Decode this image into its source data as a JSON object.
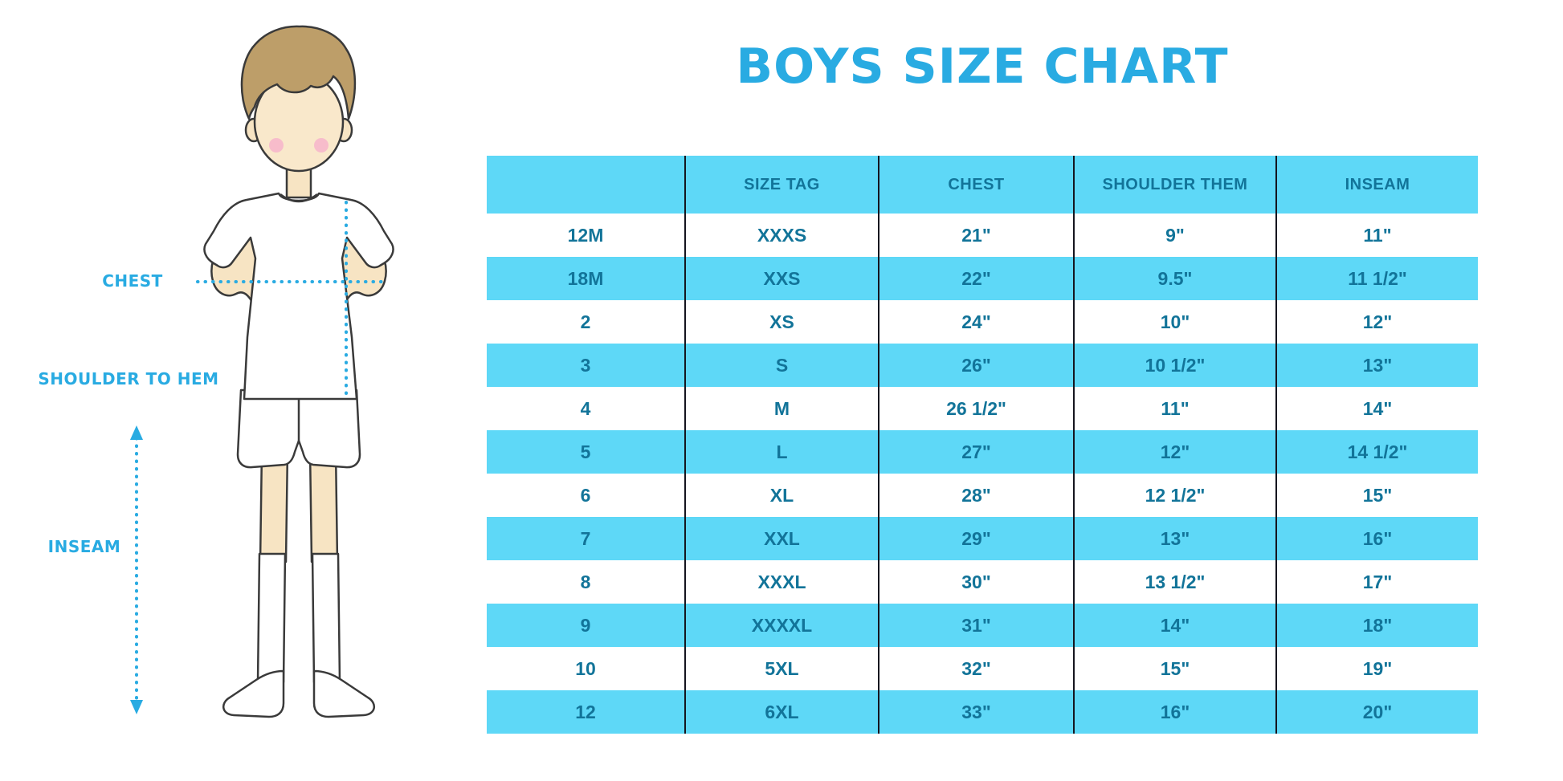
{
  "title": "BOYS SIZE CHART",
  "colors": {
    "accent": "#29ABE2",
    "row_blue": "#5ED8F7",
    "table_text": "#127499"
  },
  "figure": {
    "labels": {
      "chest": "CHEST",
      "shoulder_to_hem": "SHOULDER TO HEM",
      "inseam": "INSEAM"
    }
  },
  "chart_data": {
    "type": "table",
    "title": "BOYS SIZE CHART",
    "columns": [
      "",
      "SIZE TAG",
      "CHEST",
      "SHOULDER THEM",
      "INSEAM"
    ],
    "rows": [
      [
        "12M",
        "XXXS",
        "21\"",
        "9\"",
        "11\""
      ],
      [
        "18M",
        "XXS",
        "22\"",
        "9.5\"",
        "11 1/2\""
      ],
      [
        "2",
        "XS",
        "24\"",
        "10\"",
        "12\""
      ],
      [
        "3",
        "S",
        "26\"",
        "10 1/2\"",
        "13\""
      ],
      [
        "4",
        "M",
        "26 1/2\"",
        "11\"",
        "14\""
      ],
      [
        "5",
        "L",
        "27\"",
        "12\"",
        "14 1/2\""
      ],
      [
        "6",
        "XL",
        "28\"",
        "12 1/2\"",
        "15\""
      ],
      [
        "7",
        "XXL",
        "29\"",
        "13\"",
        "16\""
      ],
      [
        "8",
        "XXXL",
        "30\"",
        "13 1/2\"",
        "17\""
      ],
      [
        "9",
        "XXXXL",
        "31\"",
        "14\"",
        "18\""
      ],
      [
        "10",
        "5XL",
        "32\"",
        "15\"",
        "19\""
      ],
      [
        "12",
        "6XL",
        "33\"",
        "16\"",
        "20\""
      ]
    ],
    "layout": {
      "header_background": "#5ED8F7",
      "stripe_pattern": "alternating white and blue starting white after header",
      "grid": "vertical column separators only"
    }
  }
}
